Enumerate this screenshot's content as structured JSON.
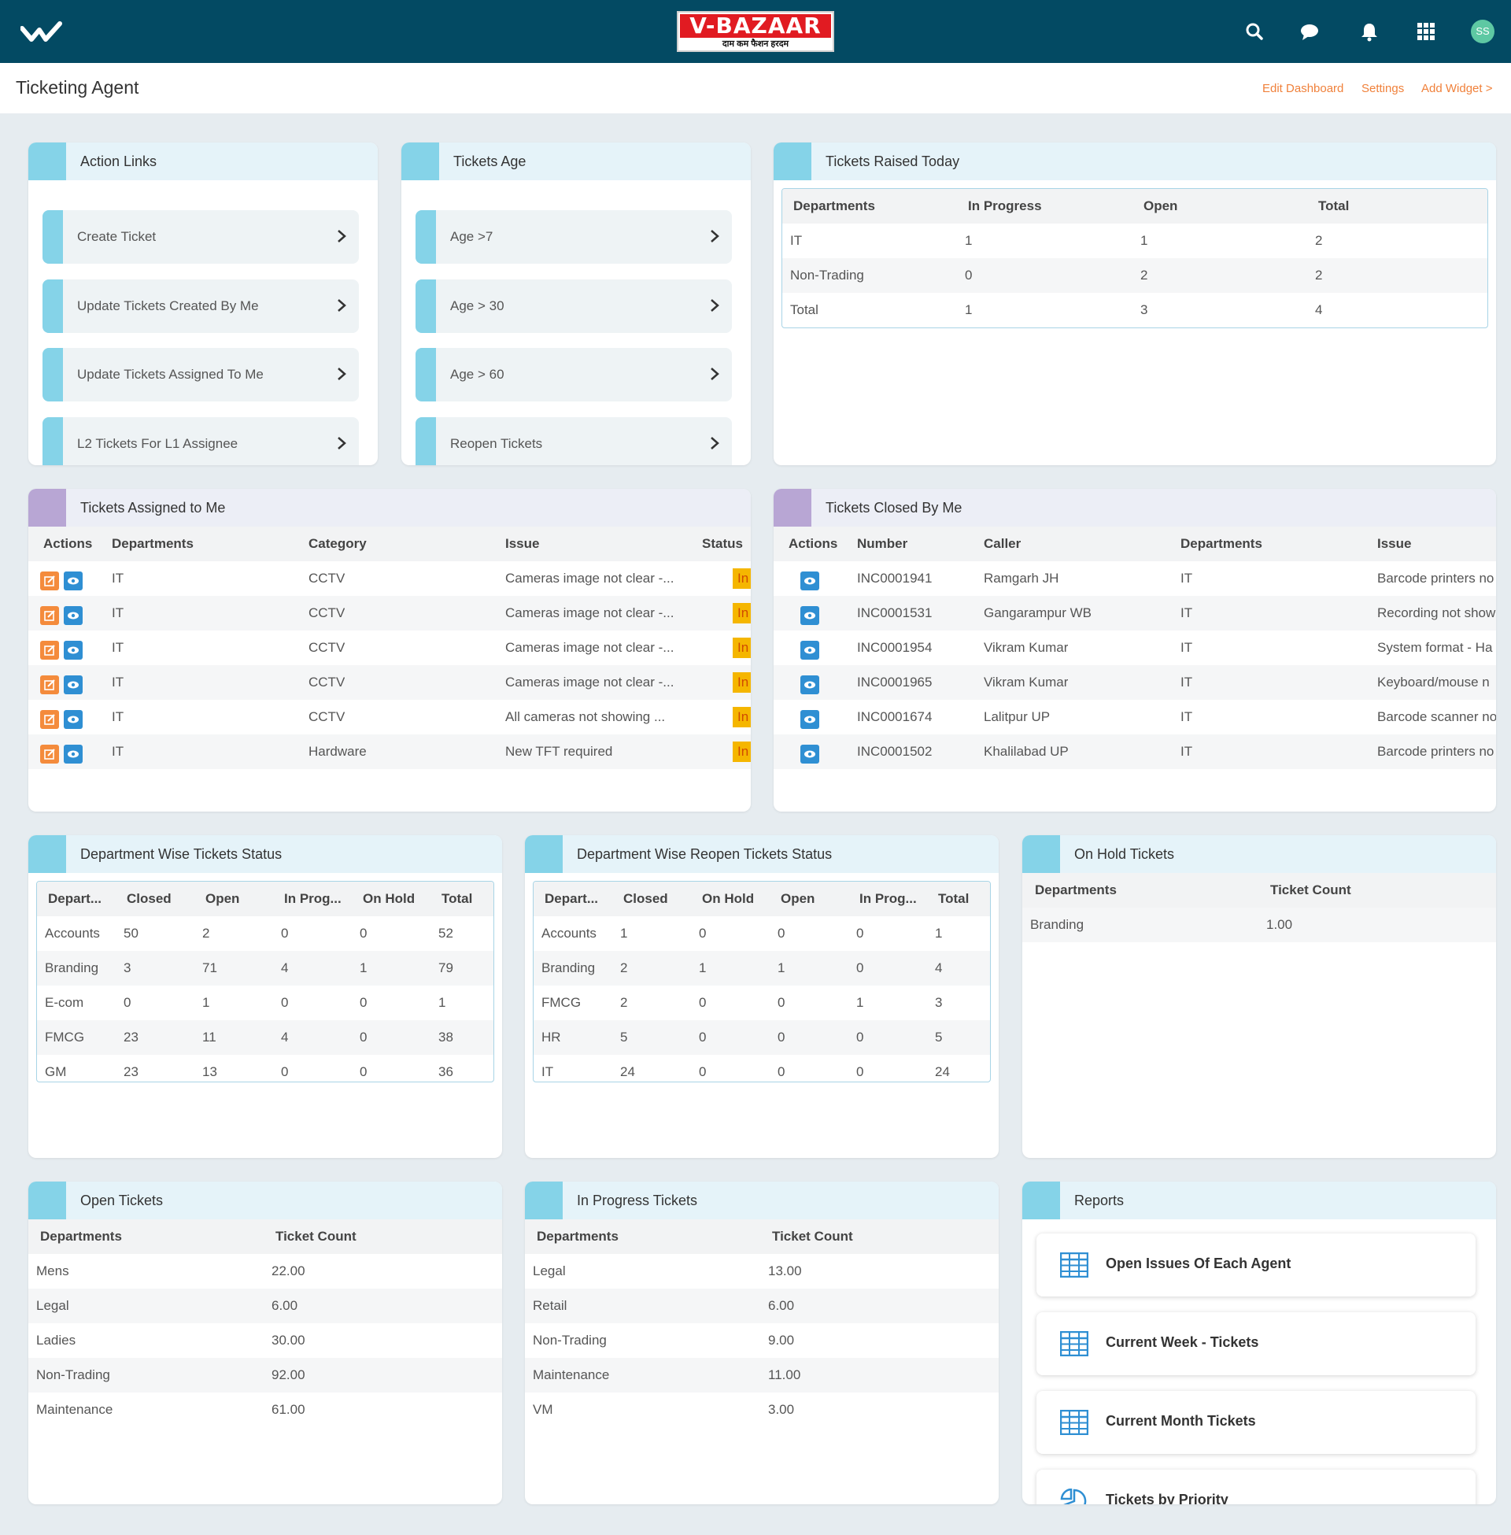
{
  "header": {
    "logo_text": "V-BAZAAR",
    "logo_tagline": "दाम कम फैशन हरदम",
    "avatar_initials": "SS",
    "icons": [
      "check-mark-logo-icon",
      "search-icon",
      "chat-icon",
      "bell-icon",
      "apps-grid-icon"
    ]
  },
  "subheader": {
    "title": "Ticketing Agent",
    "edit_dashboard": "Edit Dashboard",
    "settings": "Settings",
    "add_widget": "Add Widget >"
  },
  "colors": {
    "topbar": "#034a63",
    "accent_blue": "#85d3e8",
    "accent_purple": "#b8a6d4",
    "link_orange": "#f0813b",
    "status_badge": "#f5b600"
  },
  "action_links": {
    "title": "Action Links",
    "items": [
      "Create Ticket",
      "Update Tickets Created By Me",
      "Update Tickets Assigned To Me",
      "L2 Tickets For L1 Assignee"
    ]
  },
  "tickets_age": {
    "title": "Tickets Age",
    "items": [
      "Age >7",
      "Age > 30",
      "Age > 60",
      "Reopen Tickets"
    ]
  },
  "tickets_raised_today": {
    "title": "Tickets Raised Today",
    "columns": [
      "Departments",
      "In Progress",
      "Open",
      "Total"
    ],
    "rows": [
      [
        "IT",
        "1",
        "1",
        "2"
      ],
      [
        "Non-Trading",
        "0",
        "2",
        "2"
      ],
      [
        "Total",
        "1",
        "3",
        "4"
      ]
    ]
  },
  "tickets_assigned": {
    "title": "Tickets Assigned to Me",
    "columns": [
      "Actions",
      "Departments",
      "Category",
      "Issue",
      "Status"
    ],
    "rows": [
      [
        "IT",
        "CCTV",
        "Cameras image not clear -...",
        "In Prog"
      ],
      [
        "IT",
        "CCTV",
        "Cameras image not clear -...",
        "In Prog"
      ],
      [
        "IT",
        "CCTV",
        "Cameras image not clear -...",
        "In Prog"
      ],
      [
        "IT",
        "CCTV",
        "Cameras image not clear -...",
        "In Prog"
      ],
      [
        "IT",
        "CCTV",
        "All cameras not showing ...",
        "In Prog"
      ],
      [
        "IT",
        "Hardware",
        "New TFT required",
        "In Prog"
      ]
    ]
  },
  "tickets_closed": {
    "title": "Tickets Closed By Me",
    "columns": [
      "Actions",
      "Number",
      "Caller",
      "Departments",
      "Issue"
    ],
    "rows": [
      [
        "INC0001941",
        "Ramgarh JH",
        "IT",
        "Barcode printers no"
      ],
      [
        "INC0001531",
        "Gangarampur WB",
        "IT",
        "Recording not show"
      ],
      [
        "INC0001954",
        "Vikram Kumar",
        "IT",
        "System format - Ha"
      ],
      [
        "INC0001965",
        "Vikram Kumar",
        "IT",
        "Keyboard/mouse n"
      ],
      [
        "INC0001674",
        "Lalitpur UP",
        "IT",
        "Barcode scanner no"
      ],
      [
        "INC0001502",
        "Khalilabad UP",
        "IT",
        "Barcode printers no"
      ]
    ]
  },
  "dept_status": {
    "title": "Department Wise Tickets Status",
    "columns": [
      "Depart...",
      "Closed",
      "Open",
      "In Prog...",
      "On Hold",
      "Total"
    ],
    "rows": [
      [
        "Accounts",
        "50",
        "2",
        "0",
        "0",
        "52"
      ],
      [
        "Branding",
        "3",
        "71",
        "4",
        "1",
        "79"
      ],
      [
        "E-com",
        "0",
        "1",
        "0",
        "0",
        "1"
      ],
      [
        "FMCG",
        "23",
        "11",
        "4",
        "0",
        "38"
      ],
      [
        "GM",
        "23",
        "13",
        "0",
        "0",
        "36"
      ]
    ]
  },
  "dept_reopen": {
    "title": "Department Wise Reopen Tickets Status",
    "columns": [
      "Depart...",
      "Closed",
      "On Hold",
      "Open",
      "In Prog...",
      "Total"
    ],
    "rows": [
      [
        "Accounts",
        "1",
        "0",
        "0",
        "0",
        "1"
      ],
      [
        "Branding",
        "2",
        "1",
        "1",
        "0",
        "4"
      ],
      [
        "FMCG",
        "2",
        "0",
        "0",
        "1",
        "3"
      ],
      [
        "HR",
        "5",
        "0",
        "0",
        "0",
        "5"
      ],
      [
        "IT",
        "24",
        "0",
        "0",
        "0",
        "24"
      ]
    ]
  },
  "on_hold": {
    "title": "On Hold Tickets",
    "columns": [
      "Departments",
      "Ticket Count"
    ],
    "rows": [
      [
        "Branding",
        "1.00"
      ]
    ]
  },
  "open_tickets": {
    "title": "Open Tickets",
    "columns": [
      "Departments",
      "Ticket Count"
    ],
    "rows": [
      [
        "Mens",
        "22.00"
      ],
      [
        "Legal",
        "6.00"
      ],
      [
        "Ladies",
        "30.00"
      ],
      [
        "Non-Trading",
        "92.00"
      ],
      [
        "Maintenance",
        "61.00"
      ]
    ]
  },
  "in_progress_tickets": {
    "title": "In Progress Tickets",
    "columns": [
      "Departments",
      "Ticket Count"
    ],
    "rows": [
      [
        "Legal",
        "13.00"
      ],
      [
        "Retail",
        "6.00"
      ],
      [
        "Non-Trading",
        "9.00"
      ],
      [
        "Maintenance",
        "11.00"
      ],
      [
        "VM",
        "3.00"
      ]
    ]
  },
  "reports": {
    "title": "Reports",
    "items": [
      {
        "label": "Open Issues Of Each Agent",
        "icon": "table-icon"
      },
      {
        "label": "Current Week - Tickets",
        "icon": "table-icon"
      },
      {
        "label": "Current Month Tickets",
        "icon": "table-icon"
      },
      {
        "label": "Tickets by Priority",
        "icon": "pie-chart-icon"
      }
    ]
  }
}
